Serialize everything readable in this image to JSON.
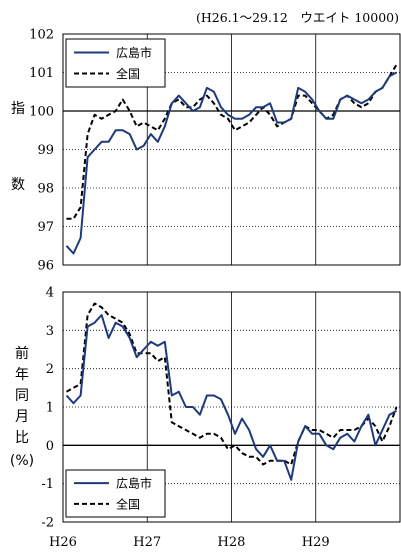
{
  "note": "(H26.1～29.12　ウエイト 10000)",
  "colors": {
    "hiroshima": "#1f3a7a",
    "national": "#000000",
    "grid": "#000000"
  },
  "legend_hiroshima": "広島市",
  "legend_national": "全国",
  "xticks": [
    "H26",
    "H27",
    "H28",
    "H29"
  ],
  "chart_data": [
    {
      "type": "line",
      "ylabel_chars": [
        "指",
        "",
        "数"
      ],
      "ylim": [
        96,
        102
      ],
      "yticks": [
        "96",
        "97",
        "98",
        "99",
        "100",
        "101",
        "102"
      ],
      "reference": 100,
      "x": [
        "H26.1",
        "H26.2",
        "H26.3",
        "H26.4",
        "H26.5",
        "H26.6",
        "H26.7",
        "H26.8",
        "H26.9",
        "H26.10",
        "H26.11",
        "H26.12",
        "H27.1",
        "H27.2",
        "H27.3",
        "H27.4",
        "H27.5",
        "H27.6",
        "H27.7",
        "H27.8",
        "H27.9",
        "H27.10",
        "H27.11",
        "H27.12",
        "H28.1",
        "H28.2",
        "H28.3",
        "H28.4",
        "H28.5",
        "H28.6",
        "H28.7",
        "H28.8",
        "H28.9",
        "H28.10",
        "H28.11",
        "H28.12",
        "H29.1",
        "H29.2",
        "H29.3",
        "H29.4",
        "H29.5",
        "H29.6",
        "H29.7",
        "H29.8",
        "H29.9",
        "H29.10",
        "H29.11",
        "H29.12"
      ],
      "series": [
        {
          "name": "広島市",
          "style": "solid",
          "values": [
            96.5,
            96.3,
            96.7,
            98.8,
            99.0,
            99.2,
            99.2,
            99.5,
            99.5,
            99.4,
            99.0,
            99.1,
            99.4,
            99.2,
            99.6,
            100.2,
            100.4,
            100.2,
            100.0,
            100.1,
            100.6,
            100.5,
            100.1,
            99.9,
            99.8,
            99.8,
            99.9,
            100.1,
            100.1,
            100.2,
            99.7,
            99.7,
            99.8,
            100.6,
            100.5,
            100.3,
            100.0,
            99.8,
            99.8,
            100.3,
            100.4,
            100.3,
            100.2,
            100.3,
            100.5,
            100.6,
            100.9,
            101.0
          ]
        },
        {
          "name": "全国",
          "style": "dashed",
          "values": [
            97.2,
            97.2,
            97.5,
            99.4,
            99.9,
            99.8,
            99.9,
            100.0,
            100.3,
            100.0,
            99.6,
            99.7,
            99.6,
            99.5,
            99.8,
            100.2,
            100.3,
            100.1,
            100.1,
            100.3,
            100.4,
            100.2,
            99.9,
            99.8,
            99.5,
            99.6,
            99.7,
            99.9,
            100.1,
            99.9,
            99.6,
            99.7,
            99.8,
            100.4,
            100.4,
            100.2,
            100.0,
            99.8,
            99.9,
            100.3,
            100.4,
            100.2,
            100.1,
            100.2,
            100.5,
            100.6,
            100.9,
            101.2
          ]
        }
      ]
    },
    {
      "type": "line",
      "ylabel_chars": [
        "前",
        "年",
        "同",
        "月",
        "比",
        "(%)"
      ],
      "ylim": [
        -2,
        4
      ],
      "yticks": [
        "-2",
        "-1",
        "0",
        "1",
        "2",
        "3",
        "4"
      ],
      "reference": 0,
      "x": [
        "H26.1",
        "H26.2",
        "H26.3",
        "H26.4",
        "H26.5",
        "H26.6",
        "H26.7",
        "H26.8",
        "H26.9",
        "H26.10",
        "H26.11",
        "H26.12",
        "H27.1",
        "H27.2",
        "H27.3",
        "H27.4",
        "H27.5",
        "H27.6",
        "H27.7",
        "H27.8",
        "H27.9",
        "H27.10",
        "H27.11",
        "H27.12",
        "H28.1",
        "H28.2",
        "H28.3",
        "H28.4",
        "H28.5",
        "H28.6",
        "H28.7",
        "H28.8",
        "H28.9",
        "H28.10",
        "H28.11",
        "H28.12",
        "H29.1",
        "H29.2",
        "H29.3",
        "H29.4",
        "H29.5",
        "H29.6",
        "H29.7",
        "H29.8",
        "H29.9",
        "H29.10",
        "H29.11",
        "H29.12"
      ],
      "series": [
        {
          "name": "広島市",
          "style": "solid",
          "values": [
            1.3,
            1.1,
            1.3,
            3.1,
            3.2,
            3.4,
            2.8,
            3.2,
            3.1,
            2.8,
            2.3,
            2.5,
            2.7,
            2.6,
            2.7,
            1.3,
            1.4,
            1.0,
            1.0,
            0.8,
            1.3,
            1.3,
            1.2,
            0.8,
            0.3,
            0.7,
            0.4,
            -0.1,
            -0.3,
            0.0,
            -0.4,
            -0.4,
            -0.9,
            0.1,
            0.5,
            0.3,
            0.3,
            0.0,
            -0.1,
            0.2,
            0.3,
            0.1,
            0.5,
            0.8,
            0.0,
            0.4,
            0.8,
            0.9
          ]
        },
        {
          "name": "全国",
          "style": "dashed",
          "values": [
            1.4,
            1.5,
            1.6,
            3.4,
            3.7,
            3.6,
            3.4,
            3.3,
            3.2,
            2.9,
            2.4,
            2.4,
            2.4,
            2.2,
            2.3,
            0.6,
            0.5,
            0.4,
            0.3,
            0.2,
            0.3,
            0.3,
            0.2,
            -0.1,
            0.0,
            -0.2,
            -0.3,
            -0.3,
            -0.5,
            -0.4,
            -0.4,
            -0.4,
            -0.5,
            0.1,
            0.5,
            0.4,
            0.4,
            0.3,
            0.2,
            0.4,
            0.4,
            0.4,
            0.5,
            0.7,
            0.5,
            0.1,
            0.5,
            1.0
          ]
        }
      ]
    }
  ]
}
